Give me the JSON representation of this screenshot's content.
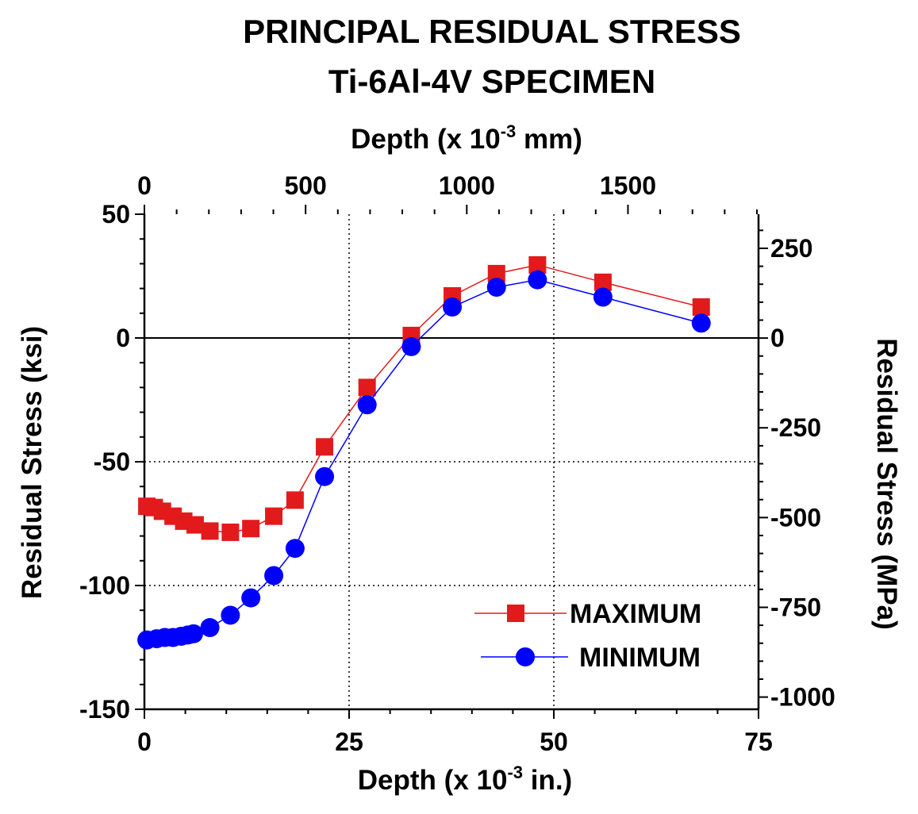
{
  "chart_data": {
    "type": "line",
    "title": "PRINCIPAL RESIDUAL STRESS",
    "subtitle": "Ti-6Al-4V SPECIMEN",
    "xlabel": "Depth (x 10",
    "xlabel_exp": "-3",
    "xlabel_unit": " in.)",
    "x2label": "Depth (x 10",
    "x2label_exp": "-3",
    "x2label_unit": " mm)",
    "ylabel": "Residual Stress (ksi)",
    "y2label": "Residual Stress (MPa)",
    "xlim": [
      0,
      75
    ],
    "ylim": [
      -150,
      50
    ],
    "x2lim_mm": [
      0,
      1905
    ],
    "y2lim_mpa": [
      -1034,
      345
    ],
    "x_ticks": [
      0,
      25,
      50,
      75
    ],
    "y_ticks": [
      -150,
      -100,
      -50,
      0,
      50
    ],
    "x2_ticks": [
      0,
      500,
      1000,
      1500
    ],
    "y2_ticks": [
      -1000,
      -750,
      -500,
      -250,
      0,
      250
    ],
    "x_tick_labels": [
      "0",
      "25",
      "50",
      "75"
    ],
    "y_tick_labels": [
      "-150",
      "-100",
      "-50",
      "0",
      "50"
    ],
    "x2_tick_labels": [
      "0",
      "500",
      "1000",
      "1500"
    ],
    "y2_tick_labels": [
      "-1000",
      "-750",
      "-500",
      "-250",
      "0",
      "250"
    ],
    "grid": "dotted at x=25, x=50, y=-50, y=-100",
    "zero_line": true,
    "legend_position": "bottom-right",
    "legend": [
      "MAXIMUM",
      "MINIMUM"
    ],
    "series": [
      {
        "name": "MAXIMUM",
        "color": "#e31a1c",
        "marker": "square",
        "x": [
          0.3,
          1.2,
          2.2,
          3.5,
          4.8,
          6.2,
          8.0,
          10.5,
          13.0,
          15.8,
          18.4,
          22.0,
          27.2,
          32.6,
          37.6,
          43.0,
          48.0,
          56.0,
          68.0
        ],
        "y": [
          -68,
          -68.5,
          -70,
          -72,
          -74,
          -75.5,
          -78,
          -78.5,
          -77,
          -72,
          -65.5,
          -44,
          -20,
          1,
          17,
          26,
          29.5,
          22.5,
          12.5
        ]
      },
      {
        "name": "MINIMUM",
        "color": "#0000ff",
        "marker": "circle",
        "x": [
          0.3,
          1.5,
          2.5,
          3.5,
          4.5,
          5.3,
          6.0,
          8.0,
          10.5,
          13.0,
          15.8,
          18.4,
          22.0,
          27.2,
          32.6,
          37.6,
          43.0,
          48.0,
          56.0,
          68.0
        ],
        "y": [
          -122,
          -121.5,
          -121,
          -121,
          -120.5,
          -120,
          -119.5,
          -117,
          -112,
          -105,
          -96,
          -85,
          -56,
          -27,
          -3.5,
          12.5,
          20.5,
          23.5,
          16.5,
          6
        ]
      }
    ]
  }
}
